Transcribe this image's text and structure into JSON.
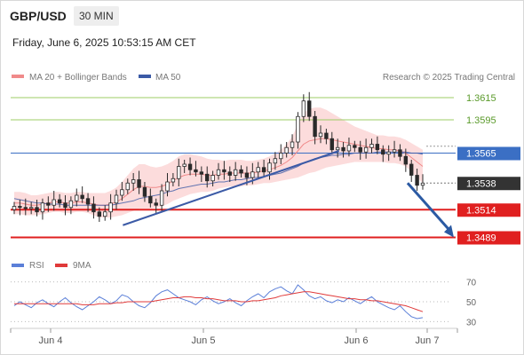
{
  "header": {
    "symbol": "GBP/USD",
    "timeframe": "30 MIN",
    "datetime": "Friday, June 6, 2025 10:53:15 AM CET"
  },
  "legend": {
    "ma20": "MA 20 + Bollinger Bands",
    "ma50": "MA 50",
    "credit": "Research © 2025 Trading Central",
    "rsi": "RSI",
    "rsi_ma": "9MA"
  },
  "colors": {
    "bollinger_fill": "#fbd6d6",
    "ma20": "#f08a8a",
    "ma50": "#3b5aa6",
    "candle": "#2a2a2a",
    "resistance": "#9ccc65",
    "pivot": "#3b6fc4",
    "support": "#e02020",
    "current": "#333333",
    "trendline": "#3b5aa6",
    "arrow": "#2b5aa3",
    "rsi": "#5b7fd8",
    "rsi_ma": "#e03a3a"
  },
  "chart_data": [
    {
      "type": "line",
      "name": "GBP/USD 30 MIN price",
      "y_range": [
        1.3479,
        1.3623
      ],
      "x_ticks": [
        "Jun 4",
        "Jun 5",
        "Jun 6",
        "Jun 7"
      ],
      "levels": [
        {
          "value": 1.3615,
          "label": "1.3615",
          "kind": "resistance"
        },
        {
          "value": 1.3595,
          "label": "1.3595",
          "kind": "resistance"
        },
        {
          "value": 1.3565,
          "label": "1.3565",
          "kind": "pivot"
        },
        {
          "value": 1.3538,
          "label": "1.3538",
          "kind": "current"
        },
        {
          "value": 1.3514,
          "label": "1.3514",
          "kind": "support"
        },
        {
          "value": 1.3489,
          "label": "1.3489",
          "kind": "support"
        }
      ],
      "close_path": [
        1.3517,
        1.3516,
        1.3515,
        1.3516,
        1.3512,
        1.352,
        1.3518,
        1.3523,
        1.352,
        1.3516,
        1.3522,
        1.3527,
        1.3524,
        1.3519,
        1.3512,
        1.3508,
        1.3512,
        1.352,
        1.3527,
        1.3532,
        1.3538,
        1.3541,
        1.3534,
        1.3526,
        1.352,
        1.3518,
        1.3531,
        1.3539,
        1.3542,
        1.3553,
        1.3555,
        1.355,
        1.3548,
        1.3546,
        1.354,
        1.3545,
        1.355,
        1.3548,
        1.3545,
        1.355,
        1.3547,
        1.3543,
        1.3548,
        1.3552,
        1.3548,
        1.3556,
        1.356,
        1.3565,
        1.357,
        1.3575,
        1.3598,
        1.3612,
        1.3598,
        1.358,
        1.3583,
        1.3578,
        1.3568,
        1.357,
        1.3567,
        1.3572,
        1.357,
        1.3566,
        1.357,
        1.3573,
        1.3568,
        1.3564,
        1.3566,
        1.3568,
        1.3562,
        1.3555,
        1.3545,
        1.3536,
        1.3538
      ],
      "ma20_values": [
        1.352,
        1.352,
        1.3519,
        1.3518,
        1.3518,
        1.3519,
        1.352,
        1.3521,
        1.3521,
        1.352,
        1.352,
        1.3521,
        1.3521,
        1.352,
        1.3519,
        1.3518,
        1.3518,
        1.3519,
        1.3521,
        1.3524,
        1.3528,
        1.3532,
        1.3535,
        1.3535,
        1.3534,
        1.3534,
        1.3535,
        1.3537,
        1.354,
        1.3543,
        1.3545,
        1.3546,
        1.3546,
        1.3546,
        1.3545,
        1.3545,
        1.3546,
        1.3546,
        1.3547,
        1.3547,
        1.3547,
        1.3547,
        1.3547,
        1.3548,
        1.3549,
        1.355,
        1.3552,
        1.3554,
        1.3557,
        1.3561,
        1.3567,
        1.3573,
        1.3576,
        1.3577,
        1.3578,
        1.3578,
        1.3577,
        1.3576,
        1.3575,
        1.3574,
        1.3573,
        1.3572,
        1.3571,
        1.357,
        1.3569,
        1.3569,
        1.3568,
        1.3568,
        1.3567,
        1.3565,
        1.3561,
        1.3557,
        1.3553
      ],
      "ma50_values": [
        1.3524,
        1.3523,
        1.3522,
        1.3521,
        1.352,
        1.352,
        1.3519,
        1.3519,
        1.3519,
        1.3518,
        1.3518,
        1.3518,
        1.3518,
        1.3518,
        1.3518,
        1.3518,
        1.3518,
        1.3518,
        1.3519,
        1.352,
        1.3521,
        1.3522,
        1.3524,
        1.3525,
        1.3526,
        1.3527,
        1.3528,
        1.353,
        1.3531,
        1.3533,
        1.3534,
        1.3535,
        1.3536,
        1.3537,
        1.3537,
        1.3538,
        1.3539,
        1.3539,
        1.354,
        1.3541,
        1.3541,
        1.3542,
        1.3543,
        1.3543,
        1.3544,
        1.3545,
        1.3546,
        1.3547,
        1.3549,
        1.3551,
        1.3553,
        1.3556,
        1.3558,
        1.356,
        1.3561,
        1.3562,
        1.3563,
        1.3563,
        1.3564,
        1.3564,
        1.3565,
        1.3565,
        1.3565,
        1.3565,
        1.3566,
        1.3566,
        1.3566,
        1.3566,
        1.3566,
        1.3566,
        1.3565,
        1.3565,
        1.3564
      ],
      "bollinger_width": [
        10,
        10,
        10,
        9,
        9,
        9,
        9,
        9,
        9,
        9,
        9,
        9,
        9,
        9,
        10,
        11,
        11,
        12,
        13,
        15,
        17,
        19,
        20,
        20,
        19,
        18,
        18,
        18,
        18,
        19,
        19,
        18,
        17,
        16,
        15,
        14,
        13,
        12,
        12,
        12,
        12,
        11,
        11,
        11,
        11,
        12,
        13,
        14,
        16,
        19,
        24,
        28,
        29,
        29,
        28,
        26,
        24,
        22,
        20,
        18,
        16,
        15,
        14,
        13,
        12,
        12,
        12,
        12,
        12,
        12,
        13,
        14,
        15
      ],
      "trendlines": [
        {
          "from": [
            0.27,
            1.35
          ],
          "to": [
            0.79,
            1.3567
          ]
        }
      ],
      "projection": {
        "from": [
          0.955,
          1.3538
        ],
        "to": [
          1.0,
          1.3489
        ]
      }
    },
    {
      "type": "line",
      "name": "RSI",
      "y_ticks": [
        70,
        50,
        30
      ],
      "y_range": [
        25,
        75
      ],
      "series": [
        {
          "name": "RSI",
          "values": [
            46,
            50,
            47,
            44,
            49,
            52,
            48,
            45,
            50,
            54,
            49,
            45,
            42,
            46,
            50,
            55,
            52,
            48,
            51,
            57,
            55,
            50,
            46,
            44,
            49,
            56,
            60,
            62,
            58,
            54,
            52,
            50,
            47,
            52,
            55,
            51,
            48,
            50,
            53,
            49,
            46,
            51,
            55,
            58,
            54,
            60,
            63,
            65,
            61,
            58,
            67,
            62,
            56,
            53,
            55,
            51,
            49,
            52,
            50,
            54,
            51,
            48,
            52,
            55,
            50,
            47,
            44,
            42,
            46,
            40,
            35,
            33,
            34
          ]
        },
        {
          "name": "9MA",
          "values": [
            48,
            48,
            48,
            48,
            48,
            48,
            48,
            48,
            48,
            48,
            48,
            48,
            47,
            47,
            47,
            48,
            48,
            48,
            49,
            49,
            50,
            50,
            50,
            50,
            50,
            51,
            52,
            53,
            54,
            54,
            55,
            55,
            54,
            54,
            53,
            53,
            52,
            51,
            51,
            51,
            50,
            50,
            51,
            51,
            52,
            53,
            54,
            56,
            57,
            58,
            59,
            60,
            60,
            59,
            58,
            57,
            56,
            55,
            54,
            53,
            53,
            52,
            52,
            51,
            51,
            50,
            49,
            48,
            47,
            46,
            44,
            42,
            40
          ]
        }
      ]
    }
  ]
}
